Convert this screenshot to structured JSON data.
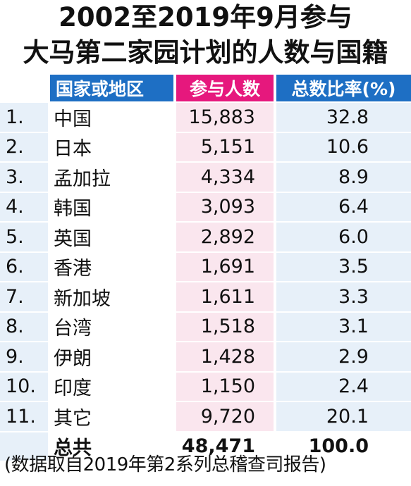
{
  "title": {
    "line1": "2002至2019年9月参与",
    "line2": "大马第二家园计划的人数与国籍"
  },
  "colors": {
    "header_blue": "#1e6fc4",
    "header_pink": "#e6187d",
    "row_blue": "#e7f0f9",
    "row_pink": "#fae6ee"
  },
  "chart_data": {
    "type": "table",
    "columns": [
      "",
      "国家或地区",
      "参与人数",
      "总数比率(%)"
    ],
    "rows": [
      {
        "rank": "1.",
        "name": "中国",
        "count": "15,883",
        "pct": "32.8"
      },
      {
        "rank": "2.",
        "name": "日本",
        "count": "5,151",
        "pct": "10.6"
      },
      {
        "rank": "3.",
        "name": "孟加拉",
        "count": "4,334",
        "pct": "8.9"
      },
      {
        "rank": "4.",
        "name": "韩国",
        "count": "3,093",
        "pct": "6.4"
      },
      {
        "rank": "5.",
        "name": "英国",
        "count": "2,892",
        "pct": "6.0"
      },
      {
        "rank": "6.",
        "name": "香港",
        "count": "1,691",
        "pct": "3.5"
      },
      {
        "rank": "7.",
        "name": "新加坡",
        "count": "1,611",
        "pct": "3.3"
      },
      {
        "rank": "8.",
        "name": "台湾",
        "count": "1,518",
        "pct": "3.1"
      },
      {
        "rank": "9.",
        "name": "伊朗",
        "count": "1,428",
        "pct": "2.9"
      },
      {
        "rank": "10.",
        "name": "印度",
        "count": "1,150",
        "pct": "2.4"
      },
      {
        "rank": "11.",
        "name": "其它",
        "count": "9,720",
        "pct": "20.1"
      }
    ],
    "total": {
      "label": "总共",
      "count": "48,471",
      "pct": "100.0"
    }
  },
  "source": "(数据取自2019年第2系列总稽查司报告)"
}
